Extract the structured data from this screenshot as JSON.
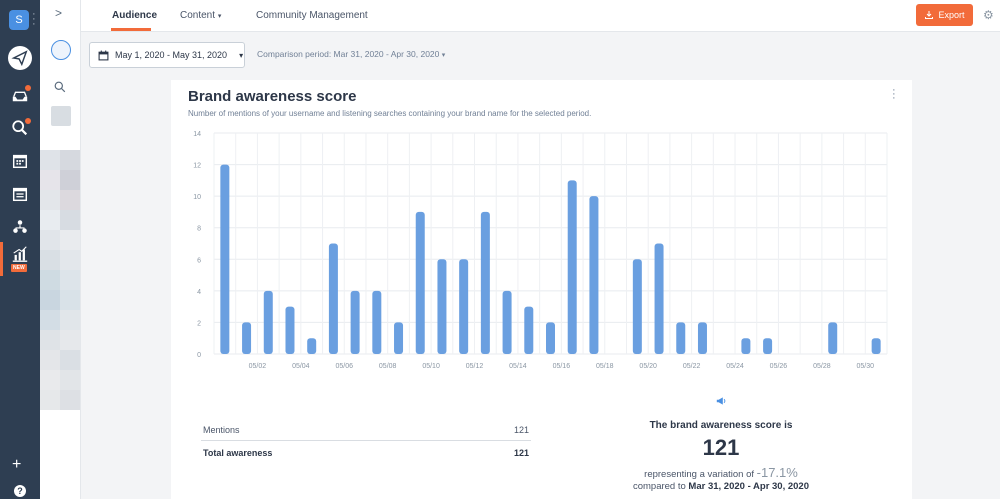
{
  "workspace": {
    "initial": "S"
  },
  "tabs": [
    {
      "label": "Audience"
    },
    {
      "label": "Content"
    },
    {
      "label": "Community Management"
    }
  ],
  "export_label": "Export",
  "date_range": "May 1, 2020 - May 31, 2020",
  "comparison_period": "Comparison period: Mar 31, 2020 - Apr 30, 2020",
  "nav_new_badge": "NEW",
  "card": {
    "title": "Brand awareness score",
    "subtitle": "Number of mentions of your username and listening searches containing your brand name for the selected period."
  },
  "chart_data": {
    "type": "bar",
    "categories": [
      "05/01",
      "05/02",
      "05/03",
      "05/04",
      "05/05",
      "05/06",
      "05/07",
      "05/08",
      "05/09",
      "05/10",
      "05/11",
      "05/12",
      "05/13",
      "05/14",
      "05/15",
      "05/16",
      "05/17",
      "05/18",
      "05/19",
      "05/20",
      "05/21",
      "05/22",
      "05/23",
      "05/24",
      "05/25",
      "05/26",
      "05/27",
      "05/28",
      "05/29",
      "05/30",
      "05/31"
    ],
    "x_tick_labels": [
      "05/02",
      "05/04",
      "05/06",
      "05/08",
      "05/10",
      "05/12",
      "05/14",
      "05/16",
      "05/18",
      "05/20",
      "05/22",
      "05/24",
      "05/26",
      "05/28",
      "05/30"
    ],
    "values": [
      12,
      2,
      4,
      3,
      1,
      7,
      4,
      4,
      2,
      9,
      6,
      6,
      9,
      4,
      3,
      2,
      11,
      10,
      0,
      6,
      7,
      2,
      2,
      0,
      1,
      1,
      0,
      0,
      2,
      0,
      1
    ],
    "ylim": [
      0,
      14
    ],
    "y_ticks": [
      0,
      2,
      4,
      6,
      8,
      10,
      12,
      14
    ],
    "grid": true,
    "color": "#6a9fe0"
  },
  "stats": {
    "rows": [
      {
        "label": "Mentions",
        "value": "121"
      }
    ],
    "total": {
      "label": "Total awareness",
      "value": "121"
    }
  },
  "summary": {
    "label": "The brand awareness score is",
    "score": "121",
    "variation_prefix": "representing a variation of",
    "variation_pct": "-17.1%",
    "compared_prefix": "compared to",
    "compared_period": "Mar 31, 2020 - Apr 30, 2020"
  }
}
